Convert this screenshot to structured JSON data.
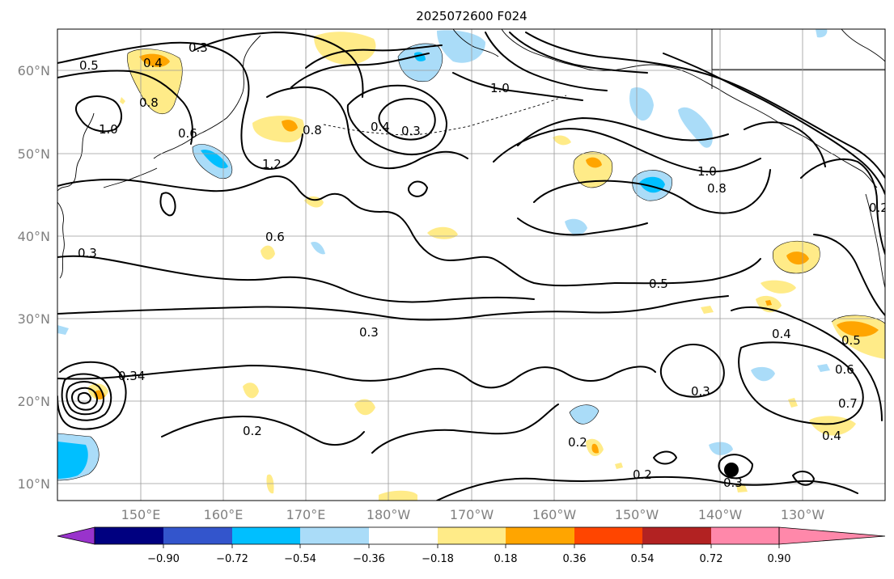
{
  "title": "2025072600 F024",
  "lat_labels": [
    "60°N",
    "50°N",
    "40°N",
    "30°N",
    "20°N",
    "10°N"
  ],
  "lon_labels": [
    "150°E",
    "160°E",
    "170°E",
    "180°W",
    "170°W",
    "160°W",
    "150°W",
    "140°W",
    "130°W"
  ],
  "colorbar": {
    "ticks": [
      "−0.90",
      "−0.72",
      "−0.54",
      "−0.36",
      "−0.18",
      "0.18",
      "0.36",
      "0.54",
      "0.72",
      "0.90"
    ],
    "colors": [
      "#9933cc",
      "#000080",
      "#3355cc",
      "#00bfff",
      "#aadcf8",
      "#ffffff",
      "#ffeb88",
      "#ffa500",
      "#ff4500",
      "#b22222",
      "#ff88aa"
    ]
  },
  "contour_labels": [
    "0.3",
    "0.5",
    "0.4",
    "0.8",
    "1.0",
    "0.6",
    "1.2",
    "0.4",
    "0.3",
    "1.0",
    "0.6",
    "0.3",
    "0.8",
    "0.3",
    "0.2",
    "0.2",
    "0.2",
    "0.3",
    "0.5",
    "0.8",
    "1.0",
    "0.4",
    "0.5",
    "0.6",
    "0.7",
    "0.4",
    "0.3",
    "0.2",
    "0.34"
  ]
}
